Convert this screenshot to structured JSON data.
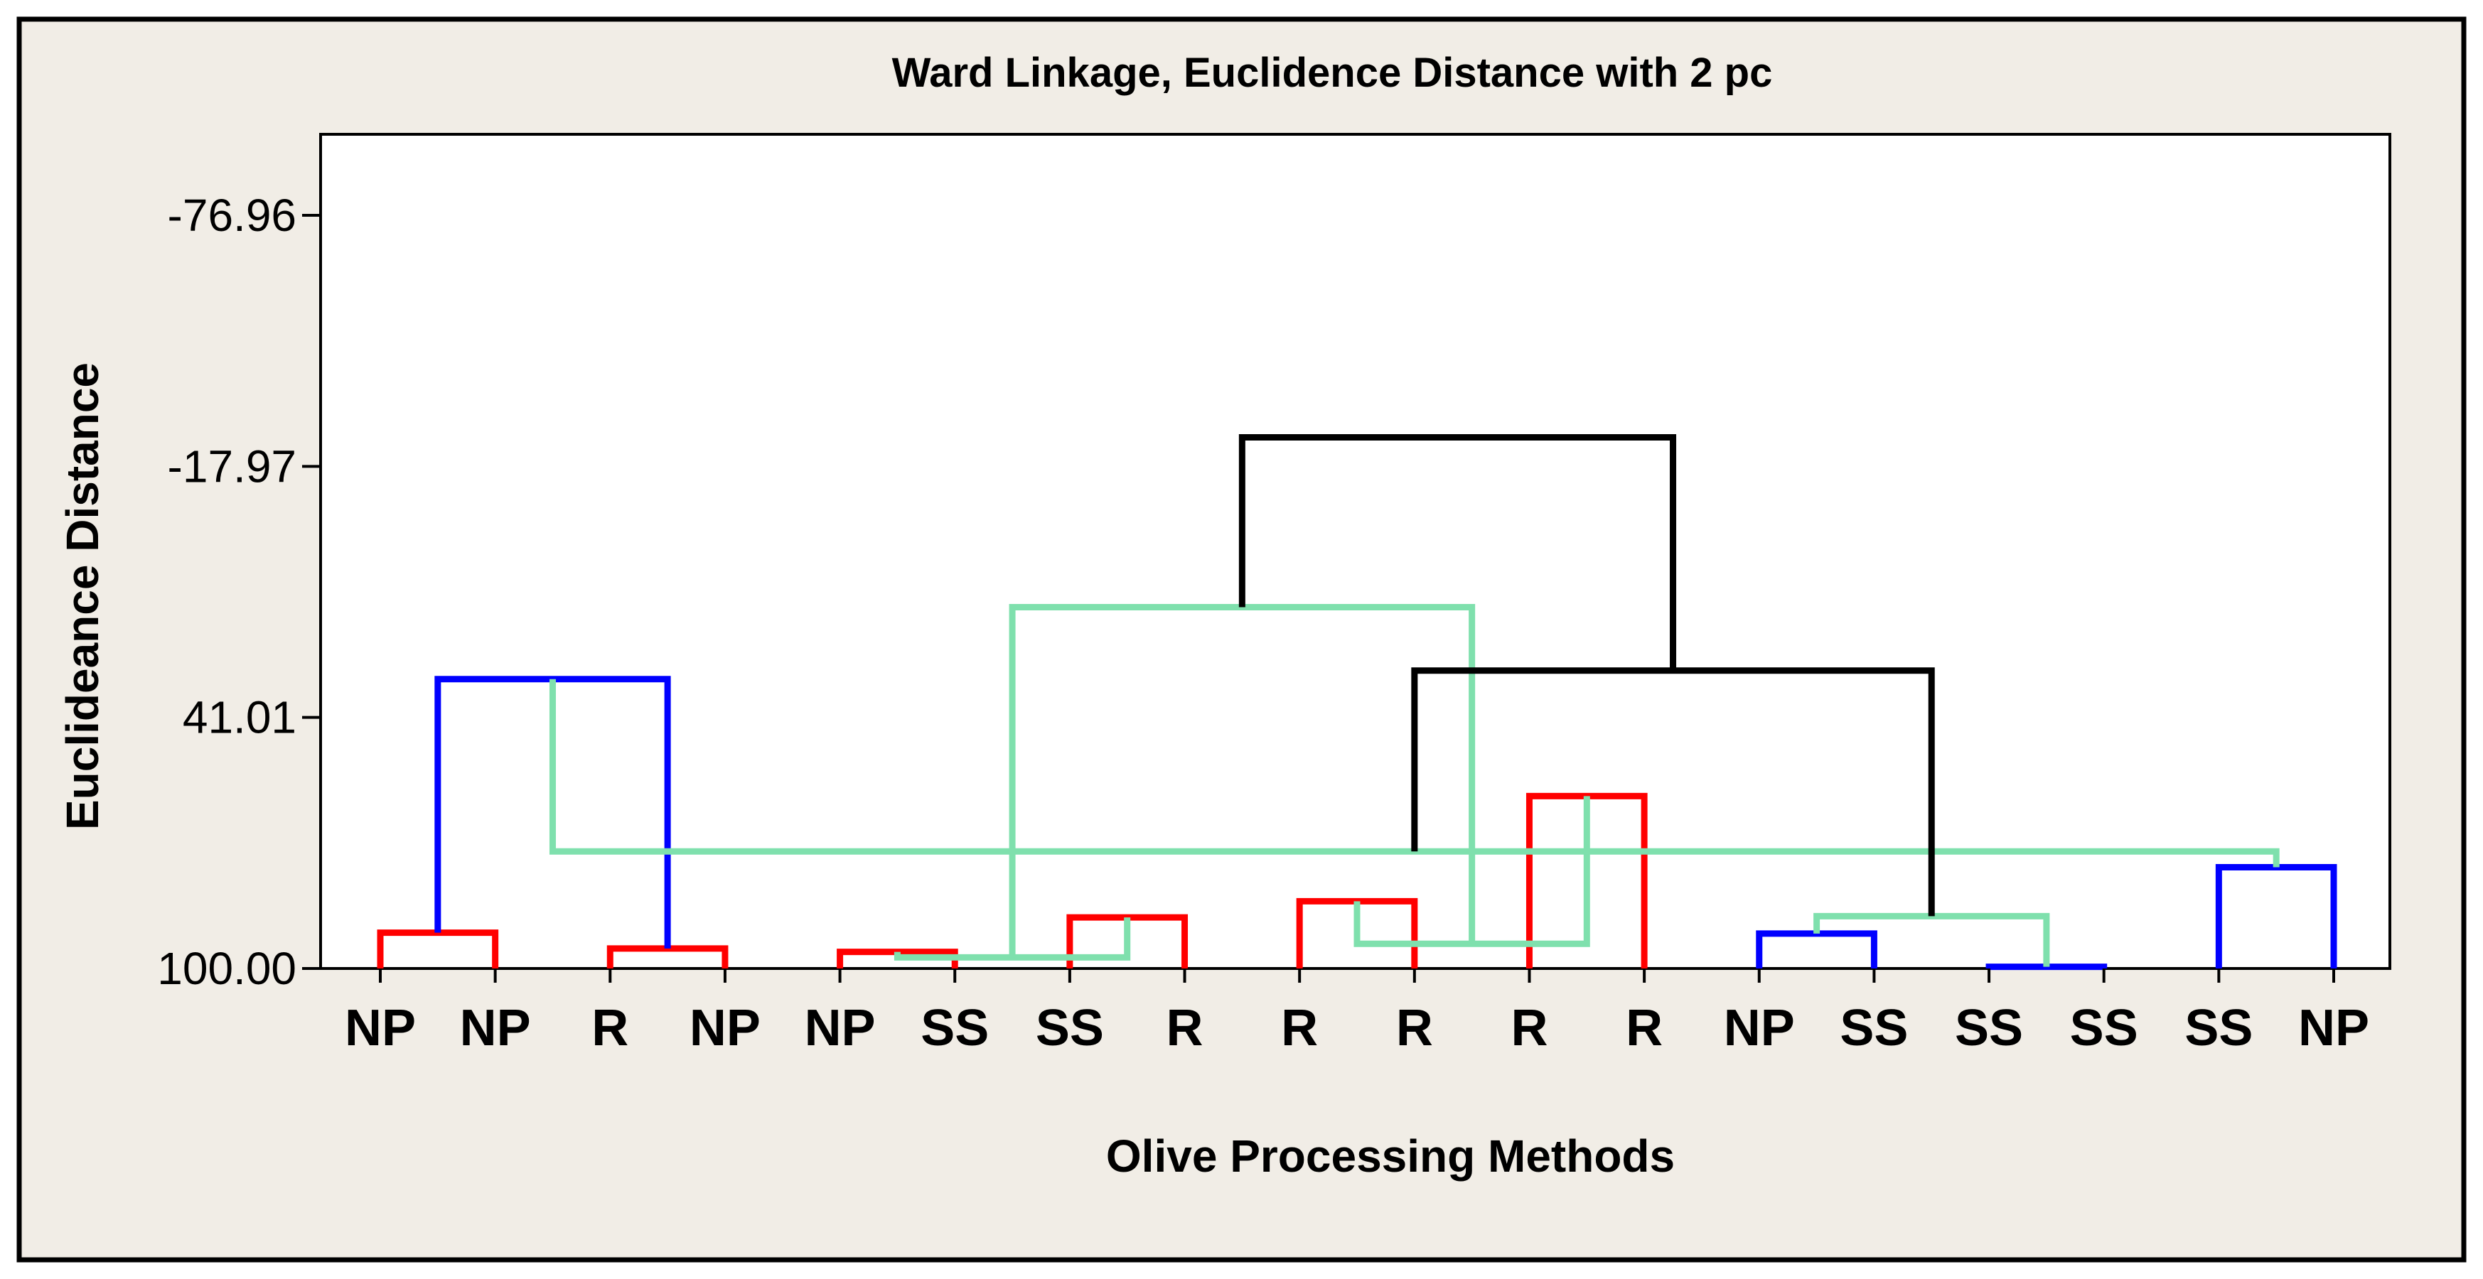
{
  "chart_data": {
    "type": "dendrogram",
    "title": "Ward Linkage, Euclidence Distance with 2 pc",
    "xlabel": "Olive Processing Methods",
    "ylabel": "Euclideance Distance",
    "y_ticks": [
      "-76.96",
      "-17.97",
      "41.01",
      "100.00"
    ],
    "y_tick_values": [
      -76.96,
      -17.97,
      41.01,
      100.0
    ],
    "ylim": [
      -96.0,
      100.0
    ],
    "y_axis_inverted": true,
    "leaves": [
      "NP",
      "NP",
      "R",
      "NP",
      "NP",
      "SS",
      "SS",
      "R",
      "R",
      "R",
      "R",
      "R",
      "NP",
      "SS",
      "SS",
      "SS",
      "SS",
      "NP"
    ],
    "merges": [
      {
        "left": 0,
        "right": 1,
        "height": 91.6,
        "color": "#ff0000"
      },
      {
        "left": 2,
        "right": 3,
        "height": 95.3,
        "color": "#ff0000"
      },
      {
        "left": 4,
        "right": 5,
        "height": 96.1,
        "color": "#ff0000"
      },
      {
        "left": 6,
        "right": 7,
        "height": 88.0,
        "color": "#ff0000"
      },
      {
        "left": 8,
        "right": 9,
        "height": 84.2,
        "color": "#ff0000"
      },
      {
        "left": 10,
        "right": 11,
        "height": 59.5,
        "color": "#ff0000"
      },
      {
        "left": 12,
        "right": 13,
        "height": 91.8,
        "color": "#0000ff"
      },
      {
        "left": 14,
        "right": 15,
        "height": 99.6,
        "color": "#0000ff"
      },
      {
        "left": 16,
        "right": 17,
        "height": 76.2,
        "color": "#0000ff"
      },
      {
        "left": 18,
        "right": 19,
        "height": 32.0,
        "color": "#0000ff"
      },
      {
        "left": 20,
        "right": 21,
        "height": 97.4,
        "color": "#7fe0ad"
      },
      {
        "left": 22,
        "right": 23,
        "height": 94.2,
        "color": "#7fe0ad"
      },
      {
        "left": 24,
        "right": 25,
        "height": 87.7,
        "color": "#7fe0ad"
      },
      {
        "left": 26,
        "right": 27,
        "height": 72.5,
        "color": "#7fe0ad"
      },
      {
        "left": 28,
        "right": 29,
        "height": 15.1,
        "color": "#7fe0ad"
      },
      {
        "left": 30,
        "right": 31,
        "height": 30.0,
        "color": "#000000"
      },
      {
        "left": 32,
        "right": 33,
        "height": -24.8,
        "color": "#000000"
      }
    ],
    "colors": {
      "cluster_1": "#ff0000",
      "cluster_2": "#0000ff",
      "cluster_3": "#7fe0ad",
      "top_links": "#000000",
      "page_background": "#f1ede6"
    }
  }
}
